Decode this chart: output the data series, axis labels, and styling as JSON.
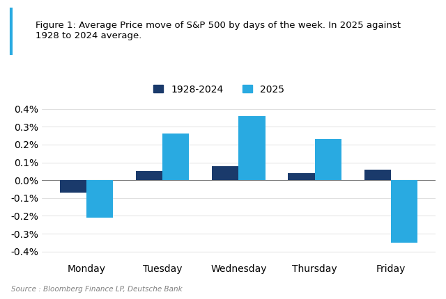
{
  "title_line1": "Figure 1: Average Price move of S&P 500 by days of the week. In 2025 against",
  "title_line2": "1928 to 2024 average.",
  "categories": [
    "Monday",
    "Tuesday",
    "Wednesday",
    "Thursday",
    "Friday"
  ],
  "series_1928_2024": [
    -0.07,
    0.05,
    0.08,
    0.04,
    0.06
  ],
  "series_2025": [
    -0.21,
    0.26,
    0.36,
    0.23,
    -0.35
  ],
  "color_1928_2024": "#1a3a6b",
  "color_2025": "#29aae1",
  "title_color": "#29aae1",
  "ylabel": "",
  "ylim": [
    -0.45,
    0.45
  ],
  "yticks": [
    -0.4,
    -0.3,
    -0.2,
    -0.1,
    0.0,
    0.1,
    0.2,
    0.3,
    0.4
  ],
  "legend_label_1": "1928-2024",
  "legend_label_2": "2025",
  "source_text": "Source : Bloomberg Finance LP, Deutsche Bank",
  "background_color": "#ffffff",
  "border_color": "#29aae1"
}
